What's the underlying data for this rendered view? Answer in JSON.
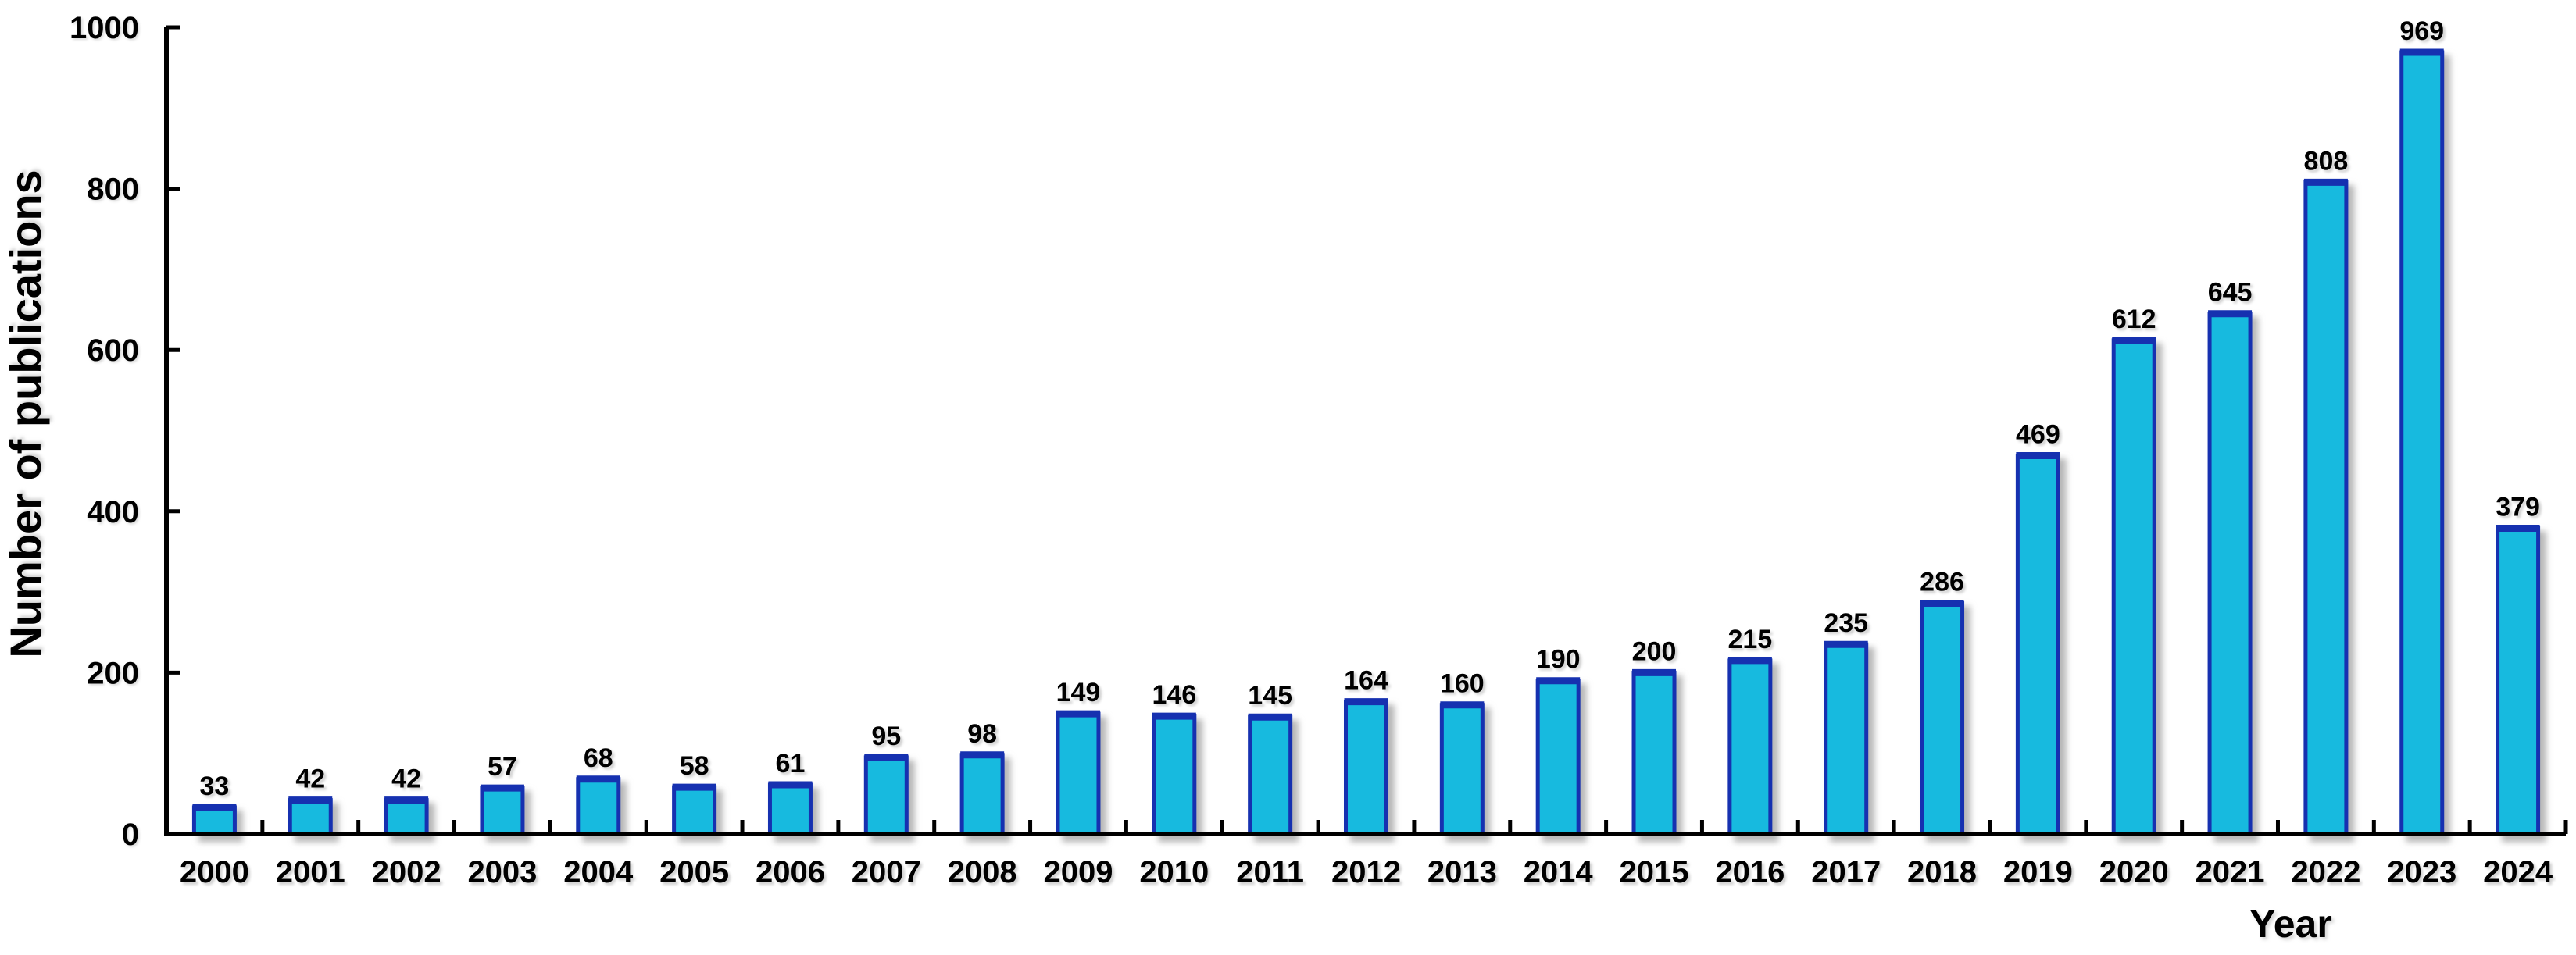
{
  "chart_data": {
    "type": "bar",
    "title": "",
    "xlabel": "Year",
    "ylabel": "Number of publications",
    "categories": [
      "2000",
      "2001",
      "2002",
      "2003",
      "2004",
      "2005",
      "2006",
      "2007",
      "2008",
      "2009",
      "2010",
      "2011",
      "2012",
      "2013",
      "2014",
      "2015",
      "2016",
      "2017",
      "2018",
      "2019",
      "2020",
      "2021",
      "2022",
      "2023",
      "2024"
    ],
    "values": [
      33,
      42,
      42,
      57,
      68,
      58,
      61,
      95,
      98,
      149,
      146,
      145,
      164,
      160,
      190,
      200,
      215,
      235,
      286,
      469,
      612,
      645,
      808,
      969,
      379
    ],
    "ylim": [
      0,
      1000
    ],
    "yticks": [
      0,
      200,
      400,
      600,
      800,
      1000
    ],
    "grid": false,
    "legend": "none",
    "bar_labels_shown": true,
    "colors": {
      "bar_fill": "#17BADF",
      "bar_border": "#1631B0",
      "axis": "#000000",
      "text": "#000000",
      "shadow": "#8C8C8C",
      "background": "#FFFFFF"
    }
  }
}
